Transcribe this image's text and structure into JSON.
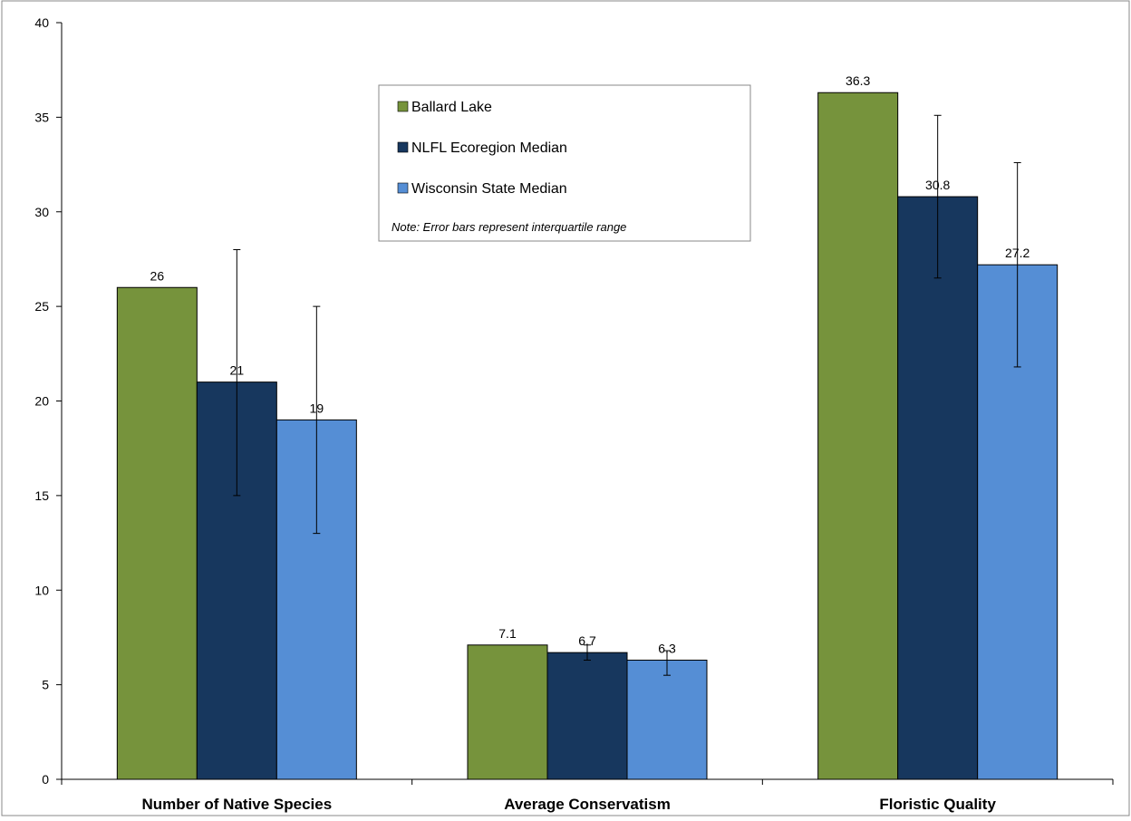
{
  "chart_data": {
    "type": "bar",
    "categories": [
      "Number of Native Species",
      "Average Conservatism",
      "Floristic Quality"
    ],
    "series": [
      {
        "name": "Ballard Lake",
        "color": "#76933c",
        "values": [
          26,
          7.1,
          36.3
        ],
        "labels": [
          "26",
          "7.1",
          "36.3"
        ],
        "error_low": [
          null,
          null,
          null
        ],
        "error_high": [
          null,
          null,
          null
        ]
      },
      {
        "name": "NLFL Ecoregion Median",
        "color": "#17375e",
        "values": [
          21,
          6.7,
          30.8
        ],
        "labels": [
          "21",
          "6.7",
          "30.8"
        ],
        "error_low": [
          15,
          6.3,
          26.5
        ],
        "error_high": [
          28,
          7.1,
          35.1
        ]
      },
      {
        "name": "Wisconsin State Median",
        "color": "#558ed5",
        "values": [
          19,
          6.3,
          27.2
        ],
        "labels": [
          "19",
          "6.3",
          "27.2"
        ],
        "error_low": [
          13,
          5.5,
          21.8
        ],
        "error_high": [
          25,
          6.8,
          32.6
        ]
      }
    ],
    "ylim": [
      0,
      40
    ],
    "yticks": [
      "0",
      "5",
      "10",
      "15",
      "20",
      "25",
      "30",
      "35",
      "40"
    ],
    "grid": false,
    "legend_position": "top-center",
    "note": "Note: Error bars represent interquartile range"
  }
}
